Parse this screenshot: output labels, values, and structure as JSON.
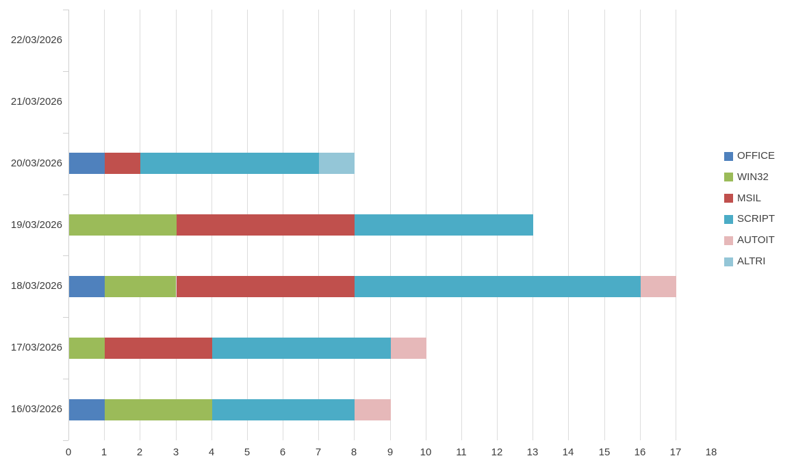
{
  "chart_data": {
    "type": "bar",
    "orientation": "horizontal",
    "stacked": true,
    "title": "",
    "xlabel": "",
    "ylabel": "",
    "categories": [
      "22/03/2026",
      "21/03/2026",
      "20/03/2026",
      "19/03/2026",
      "18/03/2026",
      "17/03/2026",
      "16/03/2026"
    ],
    "series": [
      {
        "name": "OFFICE",
        "color": "#4F81BD",
        "values": [
          0,
          0,
          1,
          0,
          1,
          0,
          1
        ]
      },
      {
        "name": "WIN32",
        "color": "#9BBB59",
        "values": [
          0,
          0,
          0,
          3,
          2,
          1,
          3
        ]
      },
      {
        "name": "MSIL",
        "color": "#C0504D",
        "values": [
          0,
          0,
          1,
          5,
          5,
          3,
          0
        ]
      },
      {
        "name": "SCRIPT",
        "color": "#4BACC6",
        "values": [
          0,
          0,
          5,
          5,
          8,
          5,
          4
        ]
      },
      {
        "name": "AUTOIT",
        "color": "#E6B8B9",
        "values": [
          0,
          0,
          0,
          0,
          1,
          1,
          1
        ]
      },
      {
        "name": "ALTRI",
        "color": "#94C6D7",
        "values": [
          0,
          0,
          1,
          0,
          0,
          0,
          0
        ]
      }
    ],
    "xlim": [
      0,
      18
    ],
    "x_ticks": [
      0,
      1,
      2,
      3,
      4,
      5,
      6,
      7,
      8,
      9,
      10,
      11,
      12,
      13,
      14,
      15,
      16,
      17,
      18
    ],
    "grid": true,
    "legend_position": "right"
  },
  "colors": {
    "gridline": "#DCDCDC",
    "axis_line": "#D0D0D0",
    "label_text": "#3C3C3C",
    "background": "#FFFFFF"
  }
}
